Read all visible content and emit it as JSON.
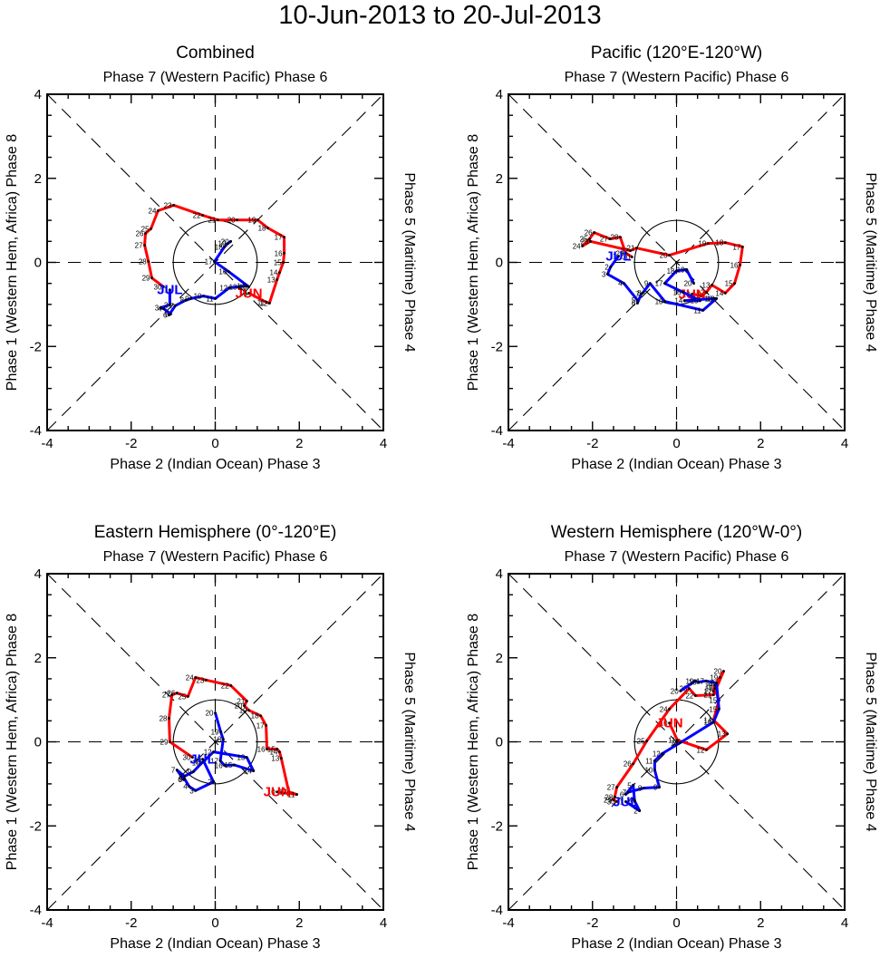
{
  "title": "10-Jun-2013 to 20-Jul-2013",
  "chart_data": {
    "type": "line",
    "title": "10-Jun-2013 to 20-Jul-2013",
    "axis_range": {
      "x": [
        -4,
        4
      ],
      "y": [
        -4,
        4
      ]
    },
    "x_ticks": [
      "-4",
      "-2",
      "0",
      "2",
      "4"
    ],
    "y_ticks": [
      "-4",
      "-2",
      "0",
      "2",
      "4"
    ],
    "labels": {
      "top": "Phase 7 (Western Pacific) Phase 6",
      "bottom": "Phase 2 (Indian Ocean) Phase 3",
      "left": "Phase 1 (Western Hem, Africa) Phase 8",
      "right": "Phase 5 (Maritime) Phase 4"
    },
    "reference": {
      "unit_circle_radius": 1,
      "dashed_lines": [
        "x=0",
        "y=0",
        "y=x",
        "y=-x"
      ]
    },
    "series_colors": {
      "June": "#ff0000",
      "July": "#0000ff"
    },
    "panels": [
      {
        "title": "Combined",
        "series": [
          {
            "name": "June",
            "month_label": "JUN",
            "color": "#ff0000",
            "days": [
              10,
              11,
              12,
              13,
              14,
              15,
              16,
              17,
              18,
              19,
              20,
              21,
              22,
              23,
              24,
              25,
              26,
              27,
              28,
              29,
              30
            ],
            "points": [
              [
                0.8,
                -0.73
              ],
              [
                1.22,
                -0.95
              ],
              [
                1.29,
                -0.97
              ],
              [
                1.47,
                -0.41
              ],
              [
                1.53,
                -0.24
              ],
              [
                1.62,
                0.0
              ],
              [
                1.64,
                0.22
              ],
              [
                1.64,
                0.6
              ],
              [
                1.25,
                0.82
              ],
              [
                1.01,
                1.01
              ],
              [
                0.52,
                1.01
              ],
              [
                0.06,
                1.01
              ],
              [
                -0.3,
                1.12
              ],
              [
                -0.99,
                1.36
              ],
              [
                -1.36,
                1.23
              ],
              [
                -1.53,
                0.8
              ],
              [
                -1.66,
                0.69
              ],
              [
                -1.68,
                0.41
              ],
              [
                -1.59,
                0.02
              ],
              [
                -1.51,
                -0.37
              ],
              [
                -1.23,
                -0.58
              ]
            ]
          },
          {
            "name": "July",
            "month_label": "JUL",
            "color": "#0000ff",
            "days": [
              1,
              2,
              3,
              4,
              5,
              6,
              7,
              8,
              9,
              10,
              11,
              12,
              13,
              14,
              15,
              16,
              17,
              18,
              19,
              20
            ],
            "points": [
              [
                -1.08,
                -0.65
              ],
              [
                -1.08,
                -1.01
              ],
              [
                -1.3,
                -1.08
              ],
              [
                -1.23,
                -1.1
              ],
              [
                -1.06,
                -1.23
              ],
              [
                -1.1,
                -1.25
              ],
              [
                -0.95,
                -1.03
              ],
              [
                -0.7,
                -0.9
              ],
              [
                -0.58,
                -0.86
              ],
              [
                -0.28,
                -0.8
              ],
              [
                0.0,
                -0.86
              ],
              [
                0.34,
                -0.6
              ],
              [
                0.56,
                -0.58
              ],
              [
                0.75,
                -0.56
              ],
              [
                0.8,
                -0.58
              ],
              [
                0.32,
                -0.22
              ],
              [
                -0.02,
                0.02
              ],
              [
                0.22,
                0.37
              ],
              [
                0.3,
                0.45
              ],
              [
                0.37,
                0.5
              ]
            ]
          }
        ]
      },
      {
        "title": "Pacific (120°E-120°W)",
        "series": [
          {
            "name": "June",
            "month_label": "JUN",
            "color": "#ff0000",
            "days": [
              10,
              11,
              12,
              13,
              14,
              15,
              16,
              17,
              18,
              19,
              20,
              21,
              22,
              23,
              24,
              25,
              26,
              27,
              28,
              29,
              30
            ],
            "points": [
              [
                0.37,
                -0.75
              ],
              [
                0.6,
                -0.8
              ],
              [
                0.71,
                -0.71
              ],
              [
                0.84,
                -0.54
              ],
              [
                1.16,
                -0.73
              ],
              [
                1.38,
                -0.5
              ],
              [
                1.51,
                -0.06
              ],
              [
                1.57,
                0.37
              ],
              [
                1.16,
                0.47
              ],
              [
                0.75,
                0.45
              ],
              [
                -0.17,
                0.17
              ],
              [
                -0.95,
                0.34
              ],
              [
                -1.1,
                0.28
              ],
              [
                -2.05,
                0.5
              ],
              [
                -2.24,
                0.39
              ],
              [
                -2.07,
                0.56
              ],
              [
                -1.96,
                0.71
              ],
              [
                -1.59,
                0.56
              ],
              [
                -1.34,
                0.6
              ],
              [
                -1.21,
                0.22
              ],
              [
                -1.06,
                0.13
              ]
            ]
          },
          {
            "name": "July",
            "month_label": "JUL",
            "color": "#0000ff",
            "days": [
              1,
              2,
              3,
              4,
              5,
              6,
              7,
              8,
              9,
              10,
              11,
              12,
              13,
              14,
              15,
              16,
              17,
              18,
              19,
              20
            ],
            "points": [
              [
                -1.38,
                0.15
              ],
              [
                -1.57,
                -0.11
              ],
              [
                -1.64,
                -0.28
              ],
              [
                -1.25,
                -0.5
              ],
              [
                -0.93,
                -0.9
              ],
              [
                -0.93,
                -0.97
              ],
              [
                -0.84,
                -0.75
              ],
              [
                -0.8,
                -0.72
              ],
              [
                -0.63,
                -0.5
              ],
              [
                -0.28,
                -0.93
              ],
              [
                0.63,
                -1.14
              ],
              [
                0.95,
                -0.86
              ],
              [
                0.9,
                -0.86
              ],
              [
                0.19,
                -0.91
              ],
              [
                0.56,
                -0.91
              ],
              [
                0.15,
                -0.71
              ],
              [
                -0.28,
                -0.5
              ],
              [
                0.0,
                -0.2
              ],
              [
                0.24,
                -0.17
              ],
              [
                0.41,
                -0.5
              ]
            ]
          }
        ]
      },
      {
        "title": "Eastern Hemisphere (0°-120°E)",
        "series": [
          {
            "name": "June",
            "month_label": "JUN",
            "color": "#ff0000",
            "days": [
              10,
              11,
              12,
              13,
              14,
              15,
              16,
              17,
              18,
              19,
              20,
              21,
              22,
              23,
              24,
              25,
              26,
              27,
              28,
              29,
              30
            ],
            "points": [
              [
                1.47,
                -1.19
              ],
              [
                1.94,
                -1.25
              ],
              [
                1.75,
                -1.19
              ],
              [
                1.57,
                -0.39
              ],
              [
                1.53,
                -0.24
              ],
              [
                1.47,
                -0.17
              ],
              [
                1.23,
                -0.17
              ],
              [
                1.21,
                0.39
              ],
              [
                1.08,
                0.62
              ],
              [
                0.8,
                0.75
              ],
              [
                0.69,
                0.86
              ],
              [
                0.75,
                0.97
              ],
              [
                0.37,
                1.34
              ],
              [
                -0.22,
                1.47
              ],
              [
                -0.47,
                1.53
              ],
              [
                -0.65,
                1.08
              ],
              [
                -0.91,
                1.16
              ],
              [
                -1.03,
                1.12
              ],
              [
                -1.1,
                0.56
              ],
              [
                -1.08,
                0.0
              ],
              [
                -0.54,
                -0.37
              ]
            ]
          },
          {
            "name": "July",
            "month_label": "JUL",
            "color": "#0000ff",
            "days": [
              1,
              2,
              3,
              4,
              5,
              6,
              7,
              8,
              9,
              10,
              11,
              12,
              13,
              14,
              15,
              16,
              17,
              18,
              19,
              20
            ],
            "points": [
              [
                -0.3,
                -0.41
              ],
              [
                -0.04,
                -0.95
              ],
              [
                -0.47,
                -1.16
              ],
              [
                -0.62,
                -1.06
              ],
              [
                -0.73,
                -0.88
              ],
              [
                -0.75,
                -0.9
              ],
              [
                -0.91,
                -0.67
              ],
              [
                -0.73,
                -0.82
              ],
              [
                -0.52,
                -0.71
              ],
              [
                -0.32,
                -0.5
              ],
              [
                -0.26,
                -0.45
              ],
              [
                -0.04,
                -0.24
              ],
              [
                0.75,
                -0.37
              ],
              [
                0.91,
                -0.69
              ],
              [
                0.45,
                -0.55
              ],
              [
                0.22,
                -0.56
              ],
              [
                0.12,
                -0.45
              ],
              [
                0.19,
                0.06
              ],
              [
                0.13,
                0.24
              ],
              [
                0.0,
                0.69
              ]
            ]
          }
        ]
      },
      {
        "title": "Western Hemisphere (120°W-0°)",
        "series": [
          {
            "name": "June",
            "month_label": "JUN",
            "color": "#ff0000",
            "days": [
              10,
              11,
              12,
              13,
              14,
              15,
              16,
              17,
              18,
              19,
              20,
              21,
              22,
              23,
              24,
              25,
              26,
              27,
              28,
              29,
              30
            ],
            "points": [
              [
                -0.17,
                0.45
              ],
              [
                0.02,
                0.04
              ],
              [
                0.71,
                -0.19
              ],
              [
                1.21,
                0.19
              ],
              [
                0.88,
                0.52
              ],
              [
                1.01,
                0.99
              ],
              [
                0.91,
                1.27
              ],
              [
                0.88,
                1.2
              ],
              [
                0.91,
                1.34
              ],
              [
                1.03,
                1.53
              ],
              [
                1.12,
                1.68
              ],
              [
                0.88,
                1.12
              ],
              [
                0.45,
                1.1
              ],
              [
                0.3,
                1.27
              ],
              [
                -0.17,
                0.78
              ],
              [
                -0.71,
                0.02
              ],
              [
                -1.03,
                -0.52
              ],
              [
                -1.42,
                -1.08
              ],
              [
                -1.47,
                -1.31
              ],
              [
                -1.5,
                -1.38
              ],
              [
                -1.42,
                -1.42
              ]
            ]
          },
          {
            "name": "July",
            "month_label": "JUL",
            "color": "#0000ff",
            "days": [
              1,
              2,
              3,
              4,
              5,
              6,
              7,
              8,
              9,
              10,
              11,
              12,
              13,
              14,
              15,
              16,
              17,
              18,
              19,
              20
            ],
            "points": [
              [
                -1.21,
                -1.42
              ],
              [
                -0.88,
                -1.64
              ],
              [
                -0.99,
                -1.42
              ],
              [
                -1.0,
                -1.38
              ],
              [
                -1.03,
                -1.03
              ],
              [
                -1.21,
                -1.25
              ],
              [
                -1.15,
                -1.2
              ],
              [
                -0.78,
                -1.1
              ],
              [
                -0.41,
                -1.08
              ],
              [
                -0.52,
                -0.67
              ],
              [
                -0.52,
                -0.45
              ],
              [
                -0.34,
                -0.28
              ],
              [
                0.09,
                -0.02
              ],
              [
                0.88,
                0.47
              ],
              [
                1.01,
                0.78
              ],
              [
                0.95,
                1.4
              ],
              [
                0.7,
                1.45
              ],
              [
                0.52,
                1.42
              ],
              [
                0.45,
                1.45
              ],
              [
                0.09,
                1.21
              ]
            ]
          }
        ]
      }
    ]
  }
}
